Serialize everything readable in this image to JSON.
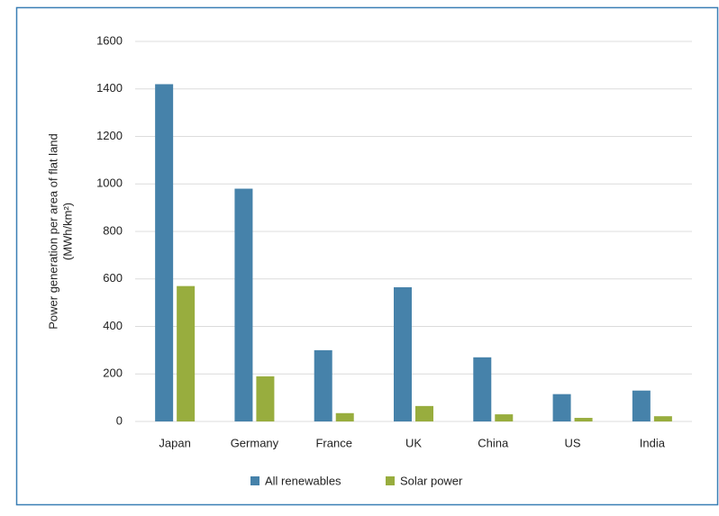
{
  "chart_data": {
    "type": "bar",
    "y_label": [
      "Power generation per area of flat land",
      "(MWh/km²)"
    ],
    "categories": [
      "Japan",
      "Germany",
      "France",
      "UK",
      "China",
      "US",
      "India"
    ],
    "series": [
      {
        "name": "All renewables",
        "color": "#4682aa",
        "values": [
          1420,
          980,
          300,
          565,
          270,
          115,
          130
        ]
      },
      {
        "name": "Solar power",
        "color": "#98ad3e",
        "values": [
          570,
          190,
          35,
          65,
          30,
          15,
          22
        ]
      }
    ],
    "ylim": [
      0,
      1600
    ],
    "yticks": [
      0,
      200,
      400,
      600,
      800,
      1000,
      1200,
      1400,
      1600
    ],
    "grid": true,
    "legend": "bottom"
  }
}
